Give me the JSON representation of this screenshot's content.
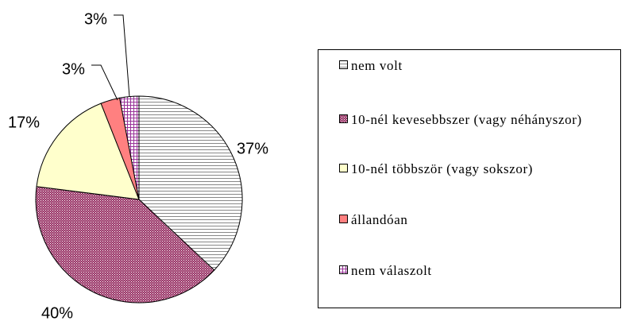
{
  "chart_data": {
    "type": "pie",
    "categories": [
      "nem volt",
      "10-nél kevesebbszer (vagy néhányszor)",
      "10-nél többször (vagy sokszor)",
      "állandóan",
      "nem válaszolt"
    ],
    "values": [
      37,
      40,
      17,
      3,
      3
    ],
    "value_labels": [
      "37%",
      "40%",
      "17%",
      "3%",
      "3%"
    ],
    "colors": [
      "#ffffff",
      "#993366",
      "#ffffcc",
      "#ff8080",
      "#993399"
    ]
  }
}
